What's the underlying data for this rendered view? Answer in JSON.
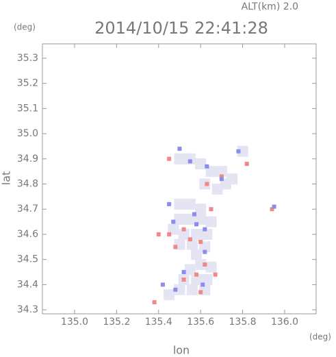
{
  "chart_data": {
    "type": "scatter",
    "title": "2014/10/15 22:41:28",
    "subtitle": "ALT(km) 2.0",
    "x_label": "lon",
    "y_label": "lat",
    "x_unit": "(deg)",
    "y_unit": "(deg)",
    "xlim": [
      134.847,
      136.15
    ],
    "ylim": [
      34.284,
      35.357
    ],
    "xticks": [
      {
        "value": 135.0,
        "label": "135.0"
      },
      135.2,
      135.4,
      135.6,
      135.8,
      {
        "value": 136.0,
        "label": "136.0"
      }
    ],
    "yticks": [
      35.3,
      35.2,
      35.1,
      {
        "value": 35.0,
        "label": "35.0"
      },
      34.9,
      34.8,
      34.7,
      34.6,
      34.5,
      34.4,
      34.3
    ],
    "series": [
      {
        "color": "#e4e4f2",
        "x": [
          135.5,
          135.55,
          135.6,
          135.65,
          135.7,
          135.75,
          135.62,
          135.68,
          135.72,
          135.8,
          135.5,
          135.55,
          135.6,
          135.5,
          135.55,
          135.6,
          135.65,
          135.47,
          135.52,
          135.58,
          135.63,
          135.5,
          135.56,
          135.62,
          135.58,
          135.6,
          135.55,
          135.65,
          135.52,
          135.58,
          135.63,
          135.5,
          135.56,
          135.62,
          135.45
        ],
        "y": [
          34.9,
          34.9,
          34.88,
          34.85,
          34.85,
          34.82,
          34.8,
          34.78,
          34.8,
          34.93,
          34.72,
          34.72,
          34.7,
          34.66,
          34.66,
          34.66,
          34.65,
          34.62,
          34.6,
          34.6,
          34.6,
          34.56,
          34.56,
          34.55,
          34.52,
          34.48,
          34.46,
          34.47,
          34.42,
          34.42,
          34.42,
          34.38,
          34.38,
          34.38,
          34.36
        ]
      },
      {
        "color": "#f08888",
        "x": [
          135.45,
          135.7,
          135.63,
          135.82,
          135.45,
          135.4,
          135.52,
          135.6,
          135.48,
          135.62,
          135.58,
          135.52,
          135.67,
          135.6,
          135.38,
          135.94,
          135.65,
          135.55
        ],
        "y": [
          34.9,
          34.83,
          34.8,
          34.88,
          34.6,
          34.6,
          34.62,
          34.57,
          34.55,
          34.48,
          34.44,
          34.42,
          34.44,
          34.37,
          34.33,
          34.7,
          34.7,
          34.58
        ]
      },
      {
        "color": "#8c8cee",
        "x": [
          135.5,
          135.55,
          135.63,
          135.78,
          135.45,
          135.57,
          135.62,
          135.58,
          135.47,
          135.62,
          135.52,
          135.48,
          135.61,
          135.95,
          135.7,
          135.42
        ],
        "y": [
          34.94,
          34.89,
          34.87,
          34.93,
          34.72,
          34.68,
          34.62,
          34.64,
          34.65,
          34.53,
          34.45,
          34.38,
          34.4,
          34.71,
          34.82,
          34.4
        ]
      }
    ]
  }
}
